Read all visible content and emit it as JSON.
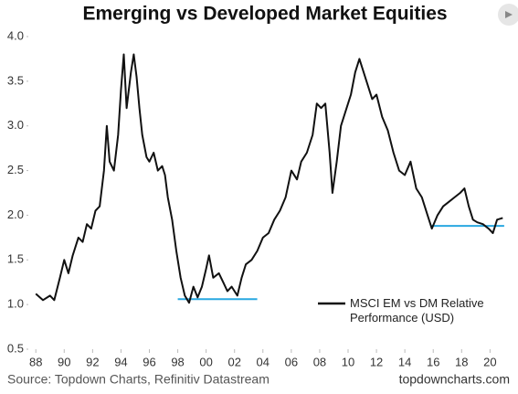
{
  "chart_data": {
    "type": "line",
    "title": "Emerging vs Developed Market Equities",
    "source": "Source: Topdown Charts, Refinitiv Datastream",
    "credit": "topdowncharts.com",
    "x": [
      1988.0,
      1988.5,
      1989.0,
      1989.3,
      1989.7,
      1990.0,
      1990.3,
      1990.6,
      1991.0,
      1991.3,
      1991.6,
      1991.9,
      1992.2,
      1992.5,
      1992.8,
      1993.0,
      1993.2,
      1993.5,
      1993.8,
      1994.0,
      1994.2,
      1994.4,
      1994.7,
      1994.9,
      1995.1,
      1995.3,
      1995.5,
      1995.8,
      1996.0,
      1996.3,
      1996.6,
      1996.9,
      1997.1,
      1997.3,
      1997.6,
      1997.9,
      1998.2,
      1998.5,
      1998.8,
      1999.1,
      1999.4,
      1999.7,
      2000.0,
      2000.2,
      2000.5,
      2000.9,
      2001.2,
      2001.5,
      2001.8,
      2002.2,
      2002.5,
      2002.8,
      2003.2,
      2003.6,
      2004.0,
      2004.4,
      2004.8,
      2005.2,
      2005.6,
      2006.0,
      2006.4,
      2006.7,
      2007.1,
      2007.5,
      2007.8,
      2008.1,
      2008.4,
      2008.7,
      2008.9,
      2009.2,
      2009.5,
      2009.9,
      2010.2,
      2010.5,
      2010.8,
      2011.0,
      2011.3,
      2011.7,
      2012.0,
      2012.4,
      2012.8,
      2013.2,
      2013.6,
      2014.0,
      2014.4,
      2014.8,
      2015.2,
      2015.6,
      2015.9,
      2016.3,
      2016.7,
      2017.1,
      2017.5,
      2017.9,
      2018.2,
      2018.5,
      2018.8,
      2019.1,
      2019.5,
      2019.9,
      2020.2,
      2020.5,
      2020.9
    ],
    "series": [
      {
        "name": "MSCI EM vs DM Relative Performance (USD)",
        "color": "#111111",
        "values": [
          1.12,
          1.05,
          1.1,
          1.05,
          1.3,
          1.5,
          1.35,
          1.55,
          1.75,
          1.7,
          1.9,
          1.85,
          2.05,
          2.1,
          2.5,
          3.0,
          2.6,
          2.5,
          2.9,
          3.4,
          3.8,
          3.2,
          3.6,
          3.8,
          3.55,
          3.2,
          2.9,
          2.65,
          2.6,
          2.7,
          2.5,
          2.55,
          2.45,
          2.2,
          1.95,
          1.6,
          1.3,
          1.1,
          1.02,
          1.2,
          1.08,
          1.2,
          1.4,
          1.55,
          1.3,
          1.35,
          1.25,
          1.15,
          1.2,
          1.1,
          1.3,
          1.45,
          1.5,
          1.6,
          1.75,
          1.8,
          1.95,
          2.05,
          2.2,
          2.5,
          2.4,
          2.6,
          2.7,
          2.9,
          3.25,
          3.2,
          3.25,
          2.7,
          2.25,
          2.6,
          3.0,
          3.2,
          3.35,
          3.6,
          3.75,
          3.65,
          3.5,
          3.3,
          3.35,
          3.1,
          2.95,
          2.7,
          2.5,
          2.45,
          2.6,
          2.3,
          2.2,
          2.0,
          1.85,
          2.0,
          2.1,
          2.15,
          2.2,
          2.25,
          2.3,
          2.1,
          1.95,
          1.92,
          1.9,
          1.85,
          1.8,
          1.95,
          1.97
        ]
      }
    ],
    "reference_lines": [
      {
        "y": 1.06,
        "x": [
          1998.0,
          2003.6
        ],
        "color": "#29a8e0"
      },
      {
        "y": 1.88,
        "x": [
          2015.8,
          2021.0
        ],
        "color": "#29a8e0"
      }
    ],
    "xlim": [
      1987.6,
      2021.2
    ],
    "xticks": [
      {
        "value": 1988,
        "label": "88"
      },
      {
        "value": 1990,
        "label": "90"
      },
      {
        "value": 1992,
        "label": "92"
      },
      {
        "value": 1994,
        "label": "94"
      },
      {
        "value": 1996,
        "label": "96"
      },
      {
        "value": 1998,
        "label": "98"
      },
      {
        "value": 2000,
        "label": "00"
      },
      {
        "value": 2002,
        "label": "02"
      },
      {
        "value": 2004,
        "label": "04"
      },
      {
        "value": 2006,
        "label": "06"
      },
      {
        "value": 2008,
        "label": "08"
      },
      {
        "value": 2010,
        "label": "10"
      },
      {
        "value": 2012,
        "label": "12"
      },
      {
        "value": 2014,
        "label": "14"
      },
      {
        "value": 2016,
        "label": "16"
      },
      {
        "value": 2018,
        "label": "18"
      },
      {
        "value": 2020,
        "label": "20"
      }
    ],
    "ylim": [
      0.5,
      4.0
    ],
    "yticks": [
      {
        "value": 0.5,
        "label": "0.5"
      },
      {
        "value": 1,
        "label": "1.0"
      },
      {
        "value": 1.5,
        "label": "1.5"
      },
      {
        "value": 2,
        "label": "2.0"
      },
      {
        "value": 2.5,
        "label": "2.5"
      },
      {
        "value": 3,
        "label": "3.0"
      },
      {
        "value": 3.5,
        "label": "3.5"
      },
      {
        "value": 4,
        "label": "4.0"
      }
    ],
    "grid": false
  }
}
